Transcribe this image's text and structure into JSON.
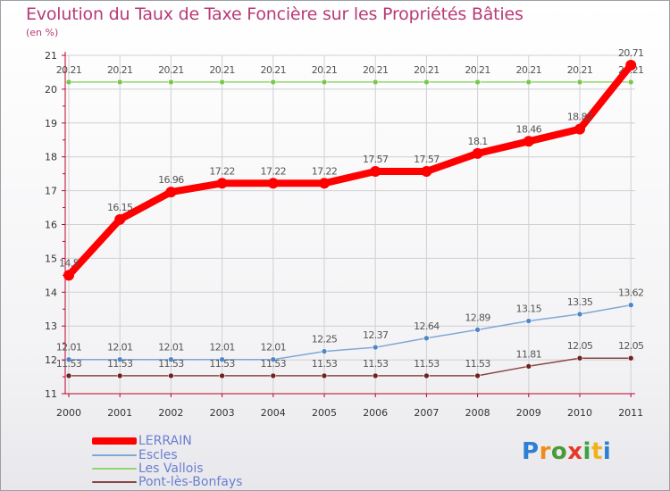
{
  "title": "Evolution du Taux de Taxe Foncière sur les Propriétés Bâties",
  "subtitle": "(en %)",
  "brand": {
    "letters": [
      "P",
      "r",
      "o",
      "x",
      "i",
      "t",
      "i"
    ],
    "colors": [
      "#2e7fd3",
      "#f08a1c",
      "#4a9a3a",
      "#e43a2c",
      "#3fa142",
      "#f0b21c",
      "#2e7fd3"
    ]
  },
  "colors": {
    "title": "#b83a76",
    "axis": "#c0002a",
    "grid": "#cfd0d4",
    "value_label": "#555555",
    "legend_text": "#6a7fd0"
  },
  "chart_data": {
    "type": "line",
    "title": "Evolution du Taux de Taxe Foncière sur les Propriétés Bâties",
    "ylabel": "(en %)",
    "xlabel": "",
    "x": [
      "2000",
      "2001",
      "2002",
      "2003",
      "2004",
      "2005",
      "2006",
      "2007",
      "2008",
      "2009",
      "2010",
      "2011"
    ],
    "ylim": [
      11,
      21
    ],
    "yticks": [
      "11",
      "12",
      "13",
      "14",
      "15",
      "16",
      "17",
      "18",
      "19",
      "20",
      "21"
    ],
    "grid": true,
    "legend_position": "bottom-left",
    "series": [
      {
        "name": "LERRAIN",
        "color": "#ff0000",
        "values": [
          14.5,
          16.15,
          16.96,
          17.22,
          17.22,
          17.22,
          17.57,
          17.57,
          18.1,
          18.46,
          18.82,
          20.71
        ],
        "labels": [
          "14.5",
          "16.15",
          "16.96",
          "17.22",
          "17.22",
          "17.22",
          "17.57",
          "17.57",
          "18.1",
          "18.46",
          "18.82",
          "20.71"
        ]
      },
      {
        "name": "Escles",
        "color": "#7fa8d6",
        "marker": "#4f86c8",
        "values": [
          12.01,
          12.01,
          12.01,
          12.01,
          12.01,
          12.25,
          12.37,
          12.64,
          12.89,
          13.15,
          13.35,
          13.62
        ],
        "labels": [
          "12.01",
          "12.01",
          "12.01",
          "12.01",
          "12.01",
          "12.25",
          "12.37",
          "12.64",
          "12.89",
          "13.15",
          "13.35",
          "13.62"
        ]
      },
      {
        "name": "Les Vallois",
        "color": "#8fd66e",
        "marker": "#76c94a",
        "values": [
          20.21,
          20.21,
          20.21,
          20.21,
          20.21,
          20.21,
          20.21,
          20.21,
          20.21,
          20.21,
          20.21,
          20.21
        ],
        "labels": [
          "20.21",
          "20.21",
          "20.21",
          "20.21",
          "20.21",
          "20.21",
          "20.21",
          "20.21",
          "20.21",
          "20.21",
          "20.21",
          "20.21"
        ]
      },
      {
        "name": "Pont-lès-Bonfays",
        "color": "#8a4646",
        "marker": "#6e2222",
        "values": [
          11.53,
          11.53,
          11.53,
          11.53,
          11.53,
          11.53,
          11.53,
          11.53,
          11.53,
          11.81,
          12.05,
          12.05
        ],
        "labels": [
          "11.53",
          "11.53",
          "11.53",
          "11.53",
          "11.53",
          "11.53",
          "11.53",
          "11.53",
          "11.53",
          "11.81",
          "12.05",
          "12.05"
        ]
      }
    ]
  }
}
